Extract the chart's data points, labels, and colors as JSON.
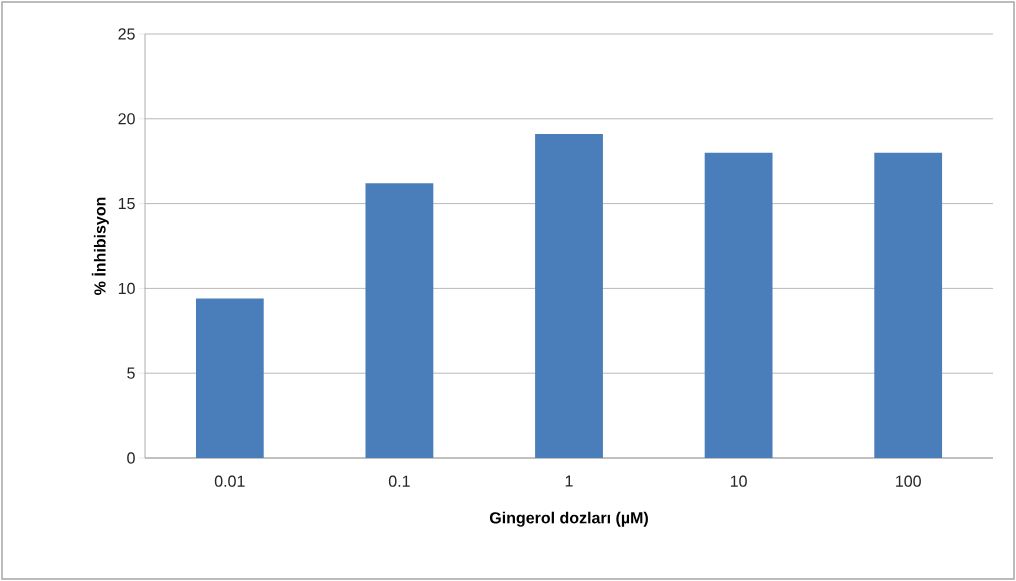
{
  "chart_data": {
    "type": "bar",
    "xlabel": "Gingerol dozları (µM)",
    "ylabel": "% İnhibisyon",
    "categories": [
      "0.01",
      "0.1",
      "1",
      "10",
      "100"
    ],
    "values": [
      9.4,
      16.2,
      19.1,
      18.0,
      18.0
    ],
    "color": "#4a7ebb",
    "ylim": [
      0,
      25
    ],
    "yticks": [
      0,
      5,
      10,
      15,
      20,
      25
    ],
    "grid": "y"
  }
}
